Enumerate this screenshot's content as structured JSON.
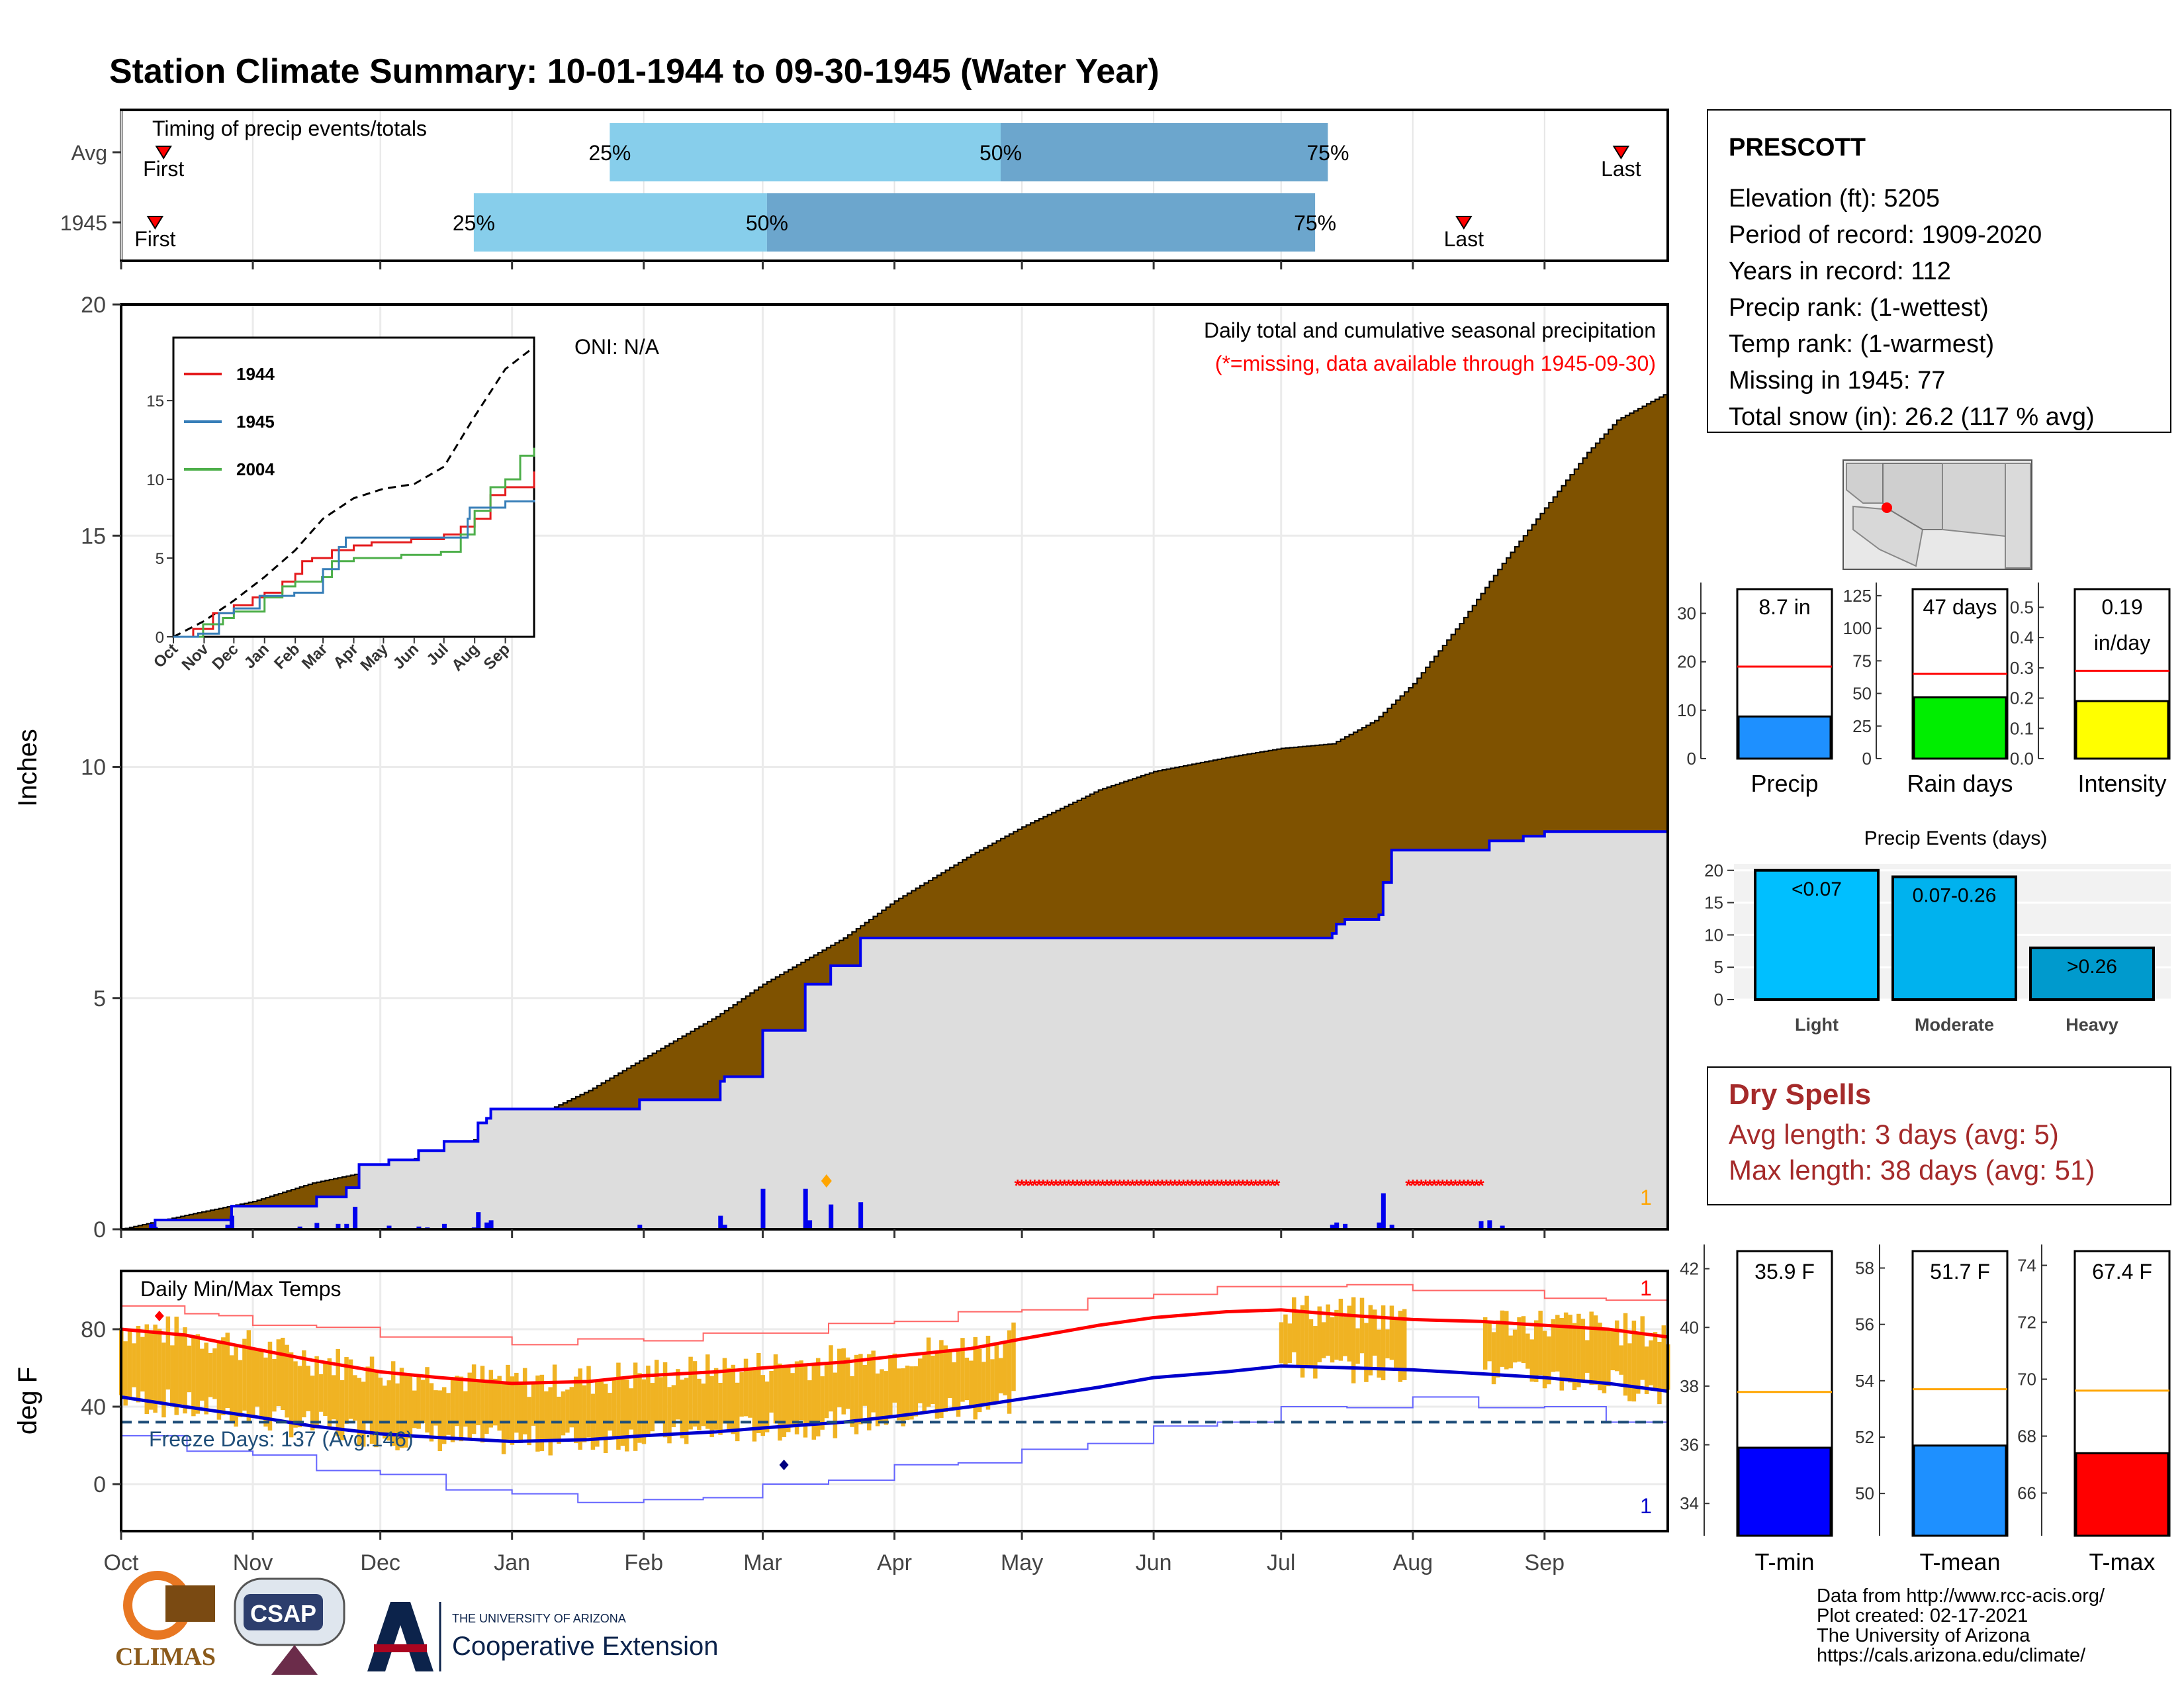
{
  "title": "Station Climate Summary: 10-01-1944 to 09-30-1945 (Water Year)",
  "colors": {
    "title": "#8b2500",
    "cumulative_avg_fill": "#7f5200",
    "cumulative_year_fill": "#dddddd",
    "cumulative_year_line": "#0000ee",
    "daily_bar": "#0000ee",
    "quartile_light": "#87ceeb",
    "quartile_dark": "#6ca6cd",
    "temp_bar": "#f0b323",
    "avg_max_line": "#ff0000",
    "avg_min_line": "#0000cc",
    "missing_marker": "#ff0000",
    "dry_spell_text": "#a52a2a"
  },
  "timing": {
    "label": "Timing of precip events/totals",
    "rows": [
      {
        "label": "Avg",
        "first_label": "First",
        "last_label": "Last",
        "first": 10,
        "last": 353,
        "q25": 115,
        "q50": 207,
        "q75": 284,
        "q25_label": "25%",
        "q50_label": "50%",
        "q75_label": "75%"
      },
      {
        "label": "1945",
        "first_label": "First",
        "last_label": "Last",
        "first": 8,
        "last": 316,
        "q25": 83,
        "q50": 152,
        "q75": 281,
        "q25_label": "25%",
        "q50_label": "50%",
        "q75_label": "75%"
      }
    ]
  },
  "months": [
    "Oct",
    "Nov",
    "Dec",
    "Jan",
    "Feb",
    "Mar",
    "Apr",
    "May",
    "Jun",
    "Jul",
    "Aug",
    "Sep"
  ],
  "month_starts": [
    0,
    31,
    61,
    92,
    123,
    151,
    182,
    212,
    243,
    273,
    304,
    335
  ],
  "precip": {
    "ylabel": "Inches",
    "yticks": [
      "0",
      "5",
      "10",
      "15",
      "20"
    ],
    "oni": "ONI: N/A",
    "note1": "Daily total and cumulative seasonal precipitation",
    "note2": "(*=missing, data available through 1945-09-30)",
    "rank_marker": "1",
    "avg_cumulative": [
      [
        0,
        0
      ],
      [
        15,
        0.3
      ],
      [
        31,
        0.6
      ],
      [
        45,
        1.0
      ],
      [
        61,
        1.3
      ],
      [
        75,
        1.7
      ],
      [
        92,
        2.2
      ],
      [
        110,
        3.0
      ],
      [
        123,
        3.7
      ],
      [
        140,
        4.6
      ],
      [
        151,
        5.3
      ],
      [
        170,
        6.3
      ],
      [
        182,
        7.1
      ],
      [
        200,
        8.1
      ],
      [
        212,
        8.7
      ],
      [
        230,
        9.5
      ],
      [
        243,
        9.9
      ],
      [
        260,
        10.2
      ],
      [
        273,
        10.4
      ],
      [
        285,
        10.5
      ],
      [
        295,
        11.0
      ],
      [
        304,
        11.8
      ],
      [
        315,
        13.1
      ],
      [
        325,
        14.4
      ],
      [
        335,
        15.6
      ],
      [
        345,
        16.8
      ],
      [
        352,
        17.5
      ],
      [
        364,
        18.1
      ]
    ],
    "year_cumulative": [
      [
        0,
        0
      ],
      [
        7,
        0
      ],
      [
        8,
        0.2
      ],
      [
        25,
        0.2
      ],
      [
        26,
        0.5
      ],
      [
        45,
        0.5
      ],
      [
        46,
        0.7
      ],
      [
        53,
        0.9
      ],
      [
        56,
        1.4
      ],
      [
        63,
        1.5
      ],
      [
        70,
        1.7
      ],
      [
        75,
        1.7
      ],
      [
        76,
        1.9
      ],
      [
        83,
        1.9
      ],
      [
        84,
        2.3
      ],
      [
        86,
        2.4
      ],
      [
        87,
        2.6
      ],
      [
        121,
        2.6
      ],
      [
        122,
        2.8
      ],
      [
        140,
        2.8
      ],
      [
        141,
        3.2
      ],
      [
        142,
        3.3
      ],
      [
        150,
        3.3
      ],
      [
        151,
        4.3
      ],
      [
        160,
        4.3
      ],
      [
        161,
        5.3
      ],
      [
        166,
        5.3
      ],
      [
        167,
        5.7
      ],
      [
        173,
        5.7
      ],
      [
        174,
        6.3
      ],
      [
        229,
        6.3
      ],
      [
        270,
        6.3
      ],
      [
        285,
        6.4
      ],
      [
        286,
        6.6
      ],
      [
        288,
        6.7
      ],
      [
        296,
        6.8
      ],
      [
        297,
        7.5
      ],
      [
        299,
        8.2
      ],
      [
        320,
        8.2
      ],
      [
        322,
        8.4
      ],
      [
        330,
        8.5
      ],
      [
        335,
        8.6
      ],
      [
        364,
        8.7
      ]
    ],
    "daily_bars": [
      [
        7,
        0.12
      ],
      [
        8,
        0.05
      ],
      [
        25,
        0.1
      ],
      [
        26,
        0.3
      ],
      [
        42,
        0.06
      ],
      [
        46,
        0.14
      ],
      [
        51,
        0.12
      ],
      [
        53,
        0.12
      ],
      [
        55,
        0.5
      ],
      [
        63,
        0.08
      ],
      [
        70,
        0.06
      ],
      [
        72,
        0.04
      ],
      [
        76,
        0.12
      ],
      [
        83,
        0.04
      ],
      [
        84,
        0.38
      ],
      [
        86,
        0.15
      ],
      [
        87,
        0.2
      ],
      [
        122,
        0.1
      ],
      [
        141,
        0.3
      ],
      [
        142,
        0.1
      ],
      [
        151,
        0.9
      ],
      [
        161,
        0.9
      ],
      [
        162,
        0.2
      ],
      [
        167,
        0.55
      ],
      [
        174,
        0.6
      ],
      [
        285,
        0.1
      ],
      [
        286,
        0.15
      ],
      [
        288,
        0.12
      ],
      [
        296,
        0.15
      ],
      [
        297,
        0.8
      ],
      [
        299,
        0.1
      ],
      [
        320,
        0.18
      ],
      [
        322,
        0.2
      ],
      [
        325,
        0.08
      ]
    ],
    "missing_ranges": [
      [
        211,
        272
      ],
      [
        303,
        320
      ]
    ],
    "highlight_day": 166
  },
  "inset": {
    "yticks": [
      "0",
      "5",
      "10",
      "15"
    ],
    "legend": [
      {
        "name": "1944",
        "color": "#e41a1c"
      },
      {
        "name": "1945",
        "color": "#377eb8"
      },
      {
        "name": "2004",
        "color": "#4daf4a"
      }
    ],
    "months": [
      "Oct",
      "Nov",
      "Dec",
      "Jan",
      "Feb",
      "Mar",
      "Apr",
      "May",
      "Jun",
      "Jul",
      "Aug",
      "Sep"
    ],
    "avg": [
      [
        0,
        0
      ],
      [
        31,
        1
      ],
      [
        61,
        2.3
      ],
      [
        92,
        3.8
      ],
      [
        123,
        5.5
      ],
      [
        151,
        7.5
      ],
      [
        182,
        8.8
      ],
      [
        212,
        9.4
      ],
      [
        243,
        9.7
      ],
      [
        273,
        10.8
      ],
      [
        304,
        14.0
      ],
      [
        335,
        17.0
      ],
      [
        364,
        18.4
      ]
    ],
    "s1944": [
      [
        0,
        0
      ],
      [
        20,
        0.5
      ],
      [
        40,
        1.5
      ],
      [
        61,
        2
      ],
      [
        80,
        2.5
      ],
      [
        92,
        2.8
      ],
      [
        110,
        3.5
      ],
      [
        123,
        4
      ],
      [
        130,
        4.8
      ],
      [
        140,
        5
      ],
      [
        160,
        5.5
      ],
      [
        182,
        5.8
      ],
      [
        200,
        6
      ],
      [
        240,
        6.2
      ],
      [
        273,
        6.5
      ],
      [
        290,
        7
      ],
      [
        304,
        7.5
      ],
      [
        320,
        9
      ],
      [
        335,
        9.5
      ],
      [
        364,
        10.5
      ]
    ],
    "s1945": [
      [
        0,
        0
      ],
      [
        25,
        0.2
      ],
      [
        46,
        1.5
      ],
      [
        61,
        1.8
      ],
      [
        87,
        2.6
      ],
      [
        122,
        2.8
      ],
      [
        151,
        4.3
      ],
      [
        167,
        5.7
      ],
      [
        174,
        6.3
      ],
      [
        270,
        6.3
      ],
      [
        297,
        7.5
      ],
      [
        299,
        8.2
      ],
      [
        335,
        8.6
      ],
      [
        364,
        8.7
      ]
    ],
    "s2004": [
      [
        0,
        0
      ],
      [
        30,
        0.8
      ],
      [
        50,
        1.2
      ],
      [
        61,
        1.6
      ],
      [
        92,
        2.5
      ],
      [
        110,
        3.2
      ],
      [
        123,
        3.5
      ],
      [
        150,
        3.8
      ],
      [
        160,
        4.8
      ],
      [
        182,
        5
      ],
      [
        230,
        5.2
      ],
      [
        270,
        5.4
      ],
      [
        290,
        6.5
      ],
      [
        304,
        8
      ],
      [
        320,
        9.5
      ],
      [
        335,
        10
      ],
      [
        350,
        11.5
      ],
      [
        364,
        12
      ]
    ]
  },
  "temps": {
    "ylabel": "deg F",
    "label": "Daily Min/Max Temps",
    "yticks": [
      "0",
      "40",
      "80"
    ],
    "freeze_label": "Freeze Days: 137 (Avg:146)",
    "freeze_line": 32,
    "max_rank_label": "1",
    "min_rank_label": "1",
    "avg_max": [
      [
        0,
        80
      ],
      [
        15,
        77
      ],
      [
        31,
        70
      ],
      [
        45,
        64
      ],
      [
        61,
        58
      ],
      [
        75,
        55
      ],
      [
        92,
        52
      ],
      [
        110,
        53
      ],
      [
        123,
        56
      ],
      [
        140,
        58
      ],
      [
        151,
        60
      ],
      [
        170,
        63
      ],
      [
        182,
        66
      ],
      [
        200,
        70
      ],
      [
        212,
        75
      ],
      [
        230,
        82
      ],
      [
        243,
        86
      ],
      [
        260,
        89
      ],
      [
        273,
        90
      ],
      [
        290,
        87
      ],
      [
        304,
        85
      ],
      [
        320,
        84
      ],
      [
        335,
        82
      ],
      [
        350,
        80
      ],
      [
        364,
        76
      ]
    ],
    "avg_min": [
      [
        0,
        45
      ],
      [
        15,
        40
      ],
      [
        31,
        35
      ],
      [
        45,
        30
      ],
      [
        61,
        26
      ],
      [
        75,
        24
      ],
      [
        92,
        22
      ],
      [
        110,
        23
      ],
      [
        123,
        25
      ],
      [
        140,
        27
      ],
      [
        151,
        29
      ],
      [
        170,
        32
      ],
      [
        182,
        35
      ],
      [
        200,
        40
      ],
      [
        212,
        44
      ],
      [
        230,
        50
      ],
      [
        243,
        55
      ],
      [
        260,
        58
      ],
      [
        273,
        61
      ],
      [
        290,
        60
      ],
      [
        304,
        59
      ],
      [
        320,
        57
      ],
      [
        335,
        55
      ],
      [
        350,
        52
      ],
      [
        364,
        48
      ]
    ],
    "record_max": [
      [
        0,
        92
      ],
      [
        15,
        88
      ],
      [
        31,
        82
      ],
      [
        61,
        76
      ],
      [
        92,
        72
      ],
      [
        123,
        74
      ],
      [
        151,
        78
      ],
      [
        182,
        84
      ],
      [
        212,
        90
      ],
      [
        243,
        98
      ],
      [
        273,
        102
      ],
      [
        304,
        100
      ],
      [
        335,
        96
      ],
      [
        364,
        90
      ]
    ],
    "record_min": [
      [
        0,
        25
      ],
      [
        31,
        15
      ],
      [
        61,
        5
      ],
      [
        92,
        -5
      ],
      [
        123,
        -8
      ],
      [
        151,
        0
      ],
      [
        182,
        10
      ],
      [
        212,
        18
      ],
      [
        243,
        30
      ],
      [
        273,
        40
      ],
      [
        304,
        45
      ],
      [
        335,
        40
      ],
      [
        364,
        30
      ]
    ]
  },
  "station": {
    "name": "PRESCOTT",
    "lines": [
      "Elevation (ft): 5205",
      "Period of record: 1909-2020",
      "Years in record: 112",
      "Precip rank:  (1-wettest)",
      "Temp rank:  (1-warmest)",
      "Missing in 1945: 77",
      "Total snow (in): 26.2 (117 % avg)"
    ]
  },
  "small_bars": [
    {
      "label": "Precip",
      "value_label": "8.7 in",
      "value": 8.7,
      "avg": 19,
      "ymax": 35,
      "yticks": [
        "0",
        "10",
        "20",
        "30"
      ],
      "ytick_values": [
        0,
        10,
        20,
        30
      ],
      "color": "#1e90ff"
    },
    {
      "label": "Rain days",
      "value_label": "47 days",
      "value": 47,
      "avg": 65,
      "ymax": 130,
      "yticks": [
        "0",
        "25",
        "50",
        "75",
        "100",
        "125"
      ],
      "ytick_values": [
        0,
        25,
        50,
        75,
        100,
        125
      ],
      "color": "#00ee00"
    },
    {
      "label": "Intensity",
      "value_label": "0.19",
      "value_label2": "in/day",
      "value": 0.19,
      "avg": 0.29,
      "ymax": 0.56,
      "yticks": [
        "0.0",
        "0.1",
        "0.2",
        "0.3",
        "0.4",
        "0.5"
      ],
      "ytick_values": [
        0,
        0.1,
        0.2,
        0.3,
        0.4,
        0.5
      ],
      "color": "#ffff00"
    }
  ],
  "precip_events": {
    "title": "Precip Events (days)",
    "yticks": [
      "0",
      "5",
      "10",
      "15",
      "20"
    ],
    "categories": [
      "Light",
      "Moderate",
      "Heavy"
    ],
    "labels": [
      "<0.07",
      "0.07-0.26",
      ">0.26"
    ],
    "values": [
      20,
      19,
      8
    ],
    "colors": [
      "#00bfff",
      "#00b2ee",
      "#009acd"
    ]
  },
  "dry_spells": {
    "title": "Dry Spells",
    "avg_line": "Avg length: 3 days (avg: 5)",
    "max_line": "Max length: 38 days (avg: 51)"
  },
  "temp_bars": [
    {
      "label": "T-min",
      "value_label": "35.9 F",
      "value": 35.9,
      "avg": 37.8,
      "ymin": 32.9,
      "ymax": 42.6,
      "yticks": [
        "34",
        "36",
        "38",
        "40",
        "42"
      ],
      "ytick_values": [
        34,
        36,
        38,
        40,
        42
      ],
      "color": "#0000ff"
    },
    {
      "label": "T-mean",
      "value_label": "51.7 F",
      "value": 51.7,
      "avg": 53.7,
      "ymin": 48.5,
      "ymax": 58.6,
      "yticks": [
        "50",
        "52",
        "54",
        "56",
        "58"
      ],
      "ytick_values": [
        50,
        52,
        54,
        56,
        58
      ],
      "color": "#1e90ff"
    },
    {
      "label": "T-max",
      "value_label": "67.4 F",
      "value": 67.4,
      "avg": 69.6,
      "ymin": 64.5,
      "ymax": 74.5,
      "yticks": [
        "66",
        "68",
        "70",
        "72",
        "74"
      ],
      "ytick_values": [
        66,
        68,
        70,
        72,
        74
      ],
      "color": "#ff0000"
    }
  ],
  "footer": {
    "lines": [
      "Data from http://www.rcc-acis.org/",
      "Plot created: 02-17-2021",
      "The University of Arizona",
      "https://cals.arizona.edu/climate/"
    ],
    "climas": "CLIMAS",
    "csap": "CSAP",
    "ua_small": "THE UNIVERSITY OF ARIZONA",
    "ua_big": "Cooperative Extension"
  },
  "chart_data": {
    "type": "area",
    "title": "Station Climate Summary: 10-01-1944 to 09-30-1945 (Water Year)",
    "ylabel": "Inches",
    "ylim": [
      0,
      20
    ],
    "categories": [
      "Oct",
      "Nov",
      "Dec",
      "Jan",
      "Feb",
      "Mar",
      "Apr",
      "May",
      "Jun",
      "Jul",
      "Aug",
      "Sep"
    ],
    "series": [
      {
        "name": "Avg",
        "values": [
          0,
          0.6,
          1.3,
          2.2,
          3.7,
          5.3,
          7.1,
          8.7,
          9.9,
          10.4,
          11.8,
          15.6
        ]
      },
      {
        "name": "1945",
        "values": [
          0,
          0.5,
          1.5,
          2.6,
          2.8,
          4.3,
          6.3,
          6.3,
          6.3,
          6.3,
          8.2,
          8.6
        ]
      }
    ]
  }
}
